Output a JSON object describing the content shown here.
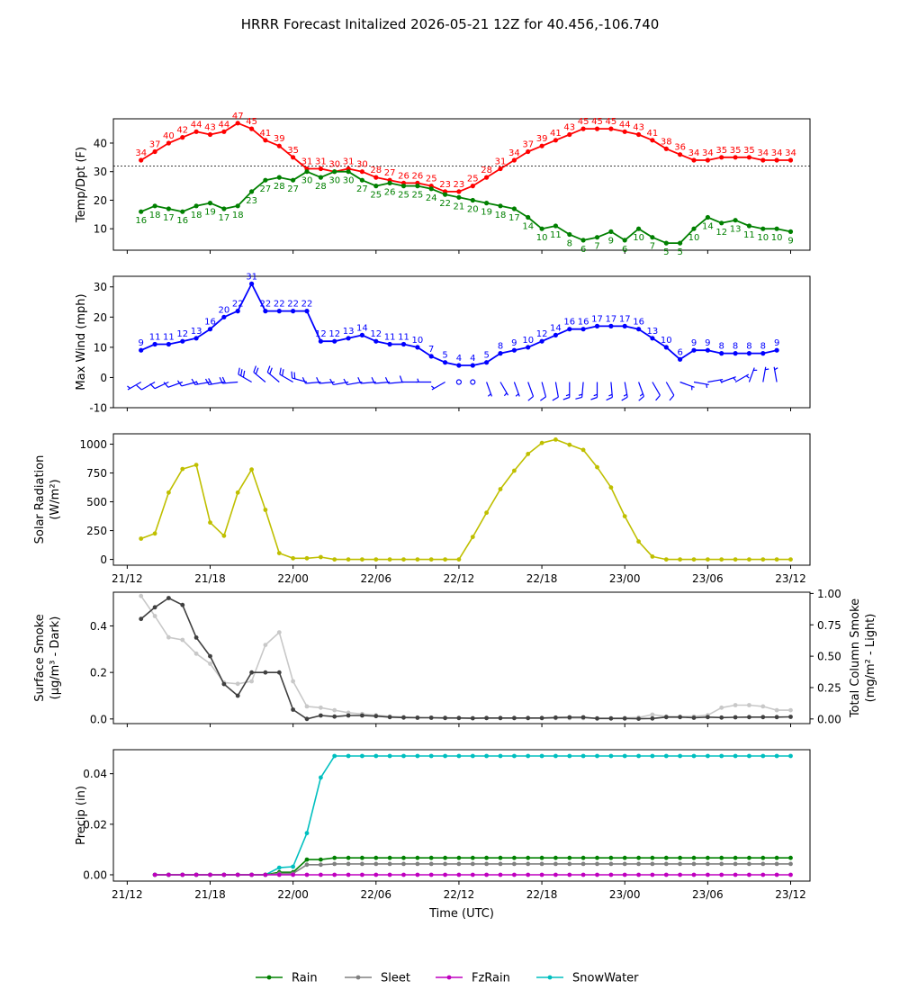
{
  "title": "HRRR Forecast Initalized 2026-05-21 12Z for 40.456,-106.740",
  "colors": {
    "temp": "#ff0000",
    "dewpoint": "#008000",
    "wind": "#0000ff",
    "solar": "#bfbf00",
    "smoke_surface": "#404040",
    "smoke_column": "#c8c8c8",
    "rain": "#008000",
    "sleet": "#808080",
    "fzrain": "#bf00bf",
    "snowwater": "#00bfbf"
  },
  "chart_data": [
    {
      "type": "line",
      "id": "temp",
      "ylabel": "Temp/Dpt (F)",
      "ylim": [
        2.5,
        48.5
      ],
      "yticks": [
        10,
        20,
        30,
        40
      ],
      "freezing_line": 32,
      "x_start_hour": 1,
      "series": [
        {
          "name": "Temp",
          "color_key": "temp",
          "values": [
            34,
            37,
            40,
            42,
            44,
            43,
            44,
            47,
            45,
            41,
            39,
            35,
            31,
            31,
            30,
            31,
            30,
            28,
            27,
            26,
            26,
            25,
            23,
            23,
            25,
            28,
            31,
            34,
            37,
            39,
            41,
            43,
            45,
            45,
            45,
            44,
            43,
            41,
            38,
            36,
            34,
            34,
            35,
            35,
            35,
            34,
            34,
            34
          ]
        },
        {
          "name": "Dewpoint",
          "color_key": "dewpoint",
          "values": [
            16,
            18,
            17,
            16,
            18,
            19,
            17,
            18,
            23,
            27,
            28,
            27,
            30,
            28,
            30,
            30,
            27,
            25,
            26,
            25,
            25,
            24,
            22,
            21,
            20,
            19,
            18,
            17,
            14,
            10,
            11,
            8,
            6,
            7,
            9,
            6,
            10,
            7,
            5,
            5,
            10,
            14,
            12,
            13,
            11,
            10,
            10,
            9
          ]
        }
      ]
    },
    {
      "type": "line",
      "id": "wind",
      "ylabel": "Max Wind (mph)",
      "ylim": [
        -10,
        33.5
      ],
      "yticks": [
        -10,
        0,
        10,
        20,
        30
      ],
      "x_start_hour": 1,
      "values": [
        9,
        11,
        11,
        12,
        13,
        16,
        20,
        22,
        31,
        22,
        22,
        22,
        22,
        12,
        12,
        13,
        14,
        12,
        11,
        11,
        10,
        7,
        5,
        4,
        4,
        5,
        8,
        9,
        10,
        12,
        14,
        16,
        16,
        17,
        17,
        17,
        16,
        13,
        10,
        6,
        9,
        9,
        8,
        8,
        8,
        8,
        9
      ],
      "barb_y": -1.5,
      "barb_dirs": [
        240,
        240,
        245,
        250,
        255,
        260,
        260,
        265,
        300,
        310,
        310,
        300,
        285,
        265,
        265,
        260,
        260,
        265,
        265,
        265,
        270,
        270,
        240,
        230,
        200,
        160,
        150,
        160,
        160,
        165,
        170,
        180,
        185,
        180,
        175,
        170,
        160,
        150,
        150,
        110,
        100,
        80,
        70,
        60,
        20,
        10,
        350
      ]
    },
    {
      "type": "line",
      "id": "solar",
      "ylabel": "Solar Radiation",
      "ylabel_unit": "(W/m²)",
      "ylim": [
        -50,
        1090
      ],
      "yticks": [
        0,
        250,
        500,
        750,
        1000
      ],
      "x_start_hour": 1,
      "xtick_labels": [
        "21/12",
        "21/18",
        "22/00",
        "22/06",
        "22/12",
        "22/18",
        "23/00",
        "23/06",
        "23/12"
      ],
      "values": [
        180,
        225,
        580,
        785,
        820,
        320,
        205,
        580,
        780,
        430,
        55,
        10,
        10,
        20,
        0,
        0,
        0,
        0,
        0,
        0,
        0,
        0,
        0,
        0,
        195,
        405,
        610,
        770,
        915,
        1010,
        1040,
        995,
        950,
        800,
        625,
        375,
        155,
        25,
        0,
        0,
        0,
        0,
        0,
        0,
        0,
        0,
        0,
        0
      ]
    },
    {
      "type": "line",
      "id": "smoke",
      "ylabel": "Surface Smoke",
      "ylabel_unit": "(μg/m³ - Dark)",
      "ylabel_right": "Total Column Smoke",
      "ylabel_right_unit": "(mg/m² - Light)",
      "ylim": [
        -0.02,
        0.545
      ],
      "yticks": [
        0.0,
        0.2,
        0.4
      ],
      "ylim_right": [
        -0.037,
        1.01
      ],
      "yticks_right": [
        0.0,
        0.25,
        0.5,
        0.75,
        1.0
      ],
      "x_start_hour": 1,
      "series": [
        {
          "name": "Surface Smoke",
          "color_key": "smoke_surface",
          "values": [
            0.43,
            0.48,
            0.52,
            0.49,
            0.35,
            0.27,
            0.15,
            0.1,
            0.2,
            0.2,
            0.2,
            0.04,
            0.0,
            0.015,
            0.01,
            0.015,
            0.015,
            0.012,
            0.008,
            0.006,
            0.005,
            0.005,
            0.004,
            0.004,
            0.003,
            0.004,
            0.004,
            0.004,
            0.004,
            0.004,
            0.006,
            0.007,
            0.007,
            0.002,
            0.002,
            0.002,
            0.001,
            0.002,
            0.008,
            0.008,
            0.005,
            0.008,
            0.006,
            0.007,
            0.008,
            0.008,
            0.008,
            0.009
          ]
        },
        {
          "name": "Total Column Smoke",
          "color_key": "smoke_column",
          "values": [
            0.98,
            0.82,
            0.65,
            0.63,
            0.52,
            0.44,
            0.29,
            0.28,
            0.3,
            0.59,
            0.69,
            0.3,
            0.1,
            0.09,
            0.07,
            0.05,
            0.04,
            0.03,
            0.02,
            0.015,
            0.012,
            0.01,
            0.01,
            0.008,
            0.007,
            0.007,
            0.006,
            0.006,
            0.006,
            0.006,
            0.006,
            0.006,
            0.006,
            0.006,
            0.007,
            0.008,
            0.012,
            0.035,
            0.02,
            0.018,
            0.02,
            0.03,
            0.09,
            0.11,
            0.11,
            0.1,
            0.07,
            0.07
          ]
        }
      ]
    },
    {
      "type": "line",
      "id": "precip",
      "ylabel": "Precip (in)",
      "xlabel": "Time (UTC)",
      "ylim": [
        -0.0025,
        0.0495
      ],
      "yticks": [
        0.0,
        0.02,
        0.04
      ],
      "x_start_hour": 2,
      "xtick_labels": [
        "21/12",
        "21/18",
        "22/00",
        "22/06",
        "22/12",
        "22/18",
        "23/00",
        "23/06",
        "23/12"
      ],
      "series": [
        {
          "name": "Rain",
          "color_key": "rain",
          "values": [
            0,
            0,
            0,
            0,
            0,
            0,
            0,
            0,
            0,
            0.001,
            0.001,
            0.006,
            0.006,
            0.0067,
            0.0067,
            0.0067,
            0.0067,
            0.0067,
            0.0067,
            0.0067,
            0.0067,
            0.0067,
            0.0067,
            0.0067,
            0.0067,
            0.0067,
            0.0067,
            0.0067,
            0.0067,
            0.0067,
            0.0067,
            0.0067,
            0.0067,
            0.0067,
            0.0067,
            0.0067,
            0.0067,
            0.0067,
            0.0067,
            0.0067,
            0.0067,
            0.0067,
            0.0067,
            0.0067,
            0.0067,
            0.0067,
            0.0067
          ]
        },
        {
          "name": "Sleet",
          "color_key": "sleet",
          "values": [
            0,
            0,
            0,
            0,
            0,
            0,
            0,
            0,
            0,
            0.0005,
            0.0005,
            0.004,
            0.004,
            0.0043,
            0.0043,
            0.0043,
            0.0043,
            0.0043,
            0.0043,
            0.0043,
            0.0043,
            0.0043,
            0.0043,
            0.0043,
            0.0043,
            0.0043,
            0.0043,
            0.0043,
            0.0043,
            0.0043,
            0.0043,
            0.0043,
            0.0043,
            0.0043,
            0.0043,
            0.0043,
            0.0043,
            0.0043,
            0.0043,
            0.0043,
            0.0043,
            0.0043,
            0.0043,
            0.0043,
            0.0043,
            0.0043,
            0.0043
          ]
        },
        {
          "name": "FzRain",
          "color_key": "fzrain",
          "values": [
            0,
            0,
            0,
            0,
            0,
            0,
            0,
            0,
            0,
            0,
            0,
            0,
            0,
            0,
            0,
            0,
            0,
            0,
            0,
            0,
            0,
            0,
            0,
            0,
            0,
            0,
            0,
            0,
            0,
            0,
            0,
            0,
            0,
            0,
            0,
            0,
            0,
            0,
            0,
            0,
            0,
            0,
            0,
            0,
            0,
            0,
            0
          ]
        },
        {
          "name": "SnowWater",
          "color_key": "snowwater",
          "values": [
            0,
            0,
            0,
            0,
            0,
            0,
            0,
            0,
            0,
            0.0028,
            0.0032,
            0.0165,
            0.0385,
            0.047,
            0.047,
            0.047,
            0.047,
            0.047,
            0.047,
            0.047,
            0.047,
            0.047,
            0.047,
            0.047,
            0.047,
            0.047,
            0.047,
            0.047,
            0.047,
            0.047,
            0.047,
            0.047,
            0.047,
            0.047,
            0.047,
            0.047,
            0.047,
            0.047,
            0.047,
            0.047,
            0.047,
            0.047,
            0.047,
            0.047,
            0.047,
            0.047,
            0.047
          ]
        }
      ]
    }
  ],
  "legend": {
    "placement": "bottom-center",
    "items": [
      {
        "label": "Rain",
        "color_key": "rain"
      },
      {
        "label": "Sleet",
        "color_key": "sleet"
      },
      {
        "label": "FzRain",
        "color_key": "fzrain"
      },
      {
        "label": "SnowWater",
        "color_key": "snowwater"
      }
    ]
  }
}
